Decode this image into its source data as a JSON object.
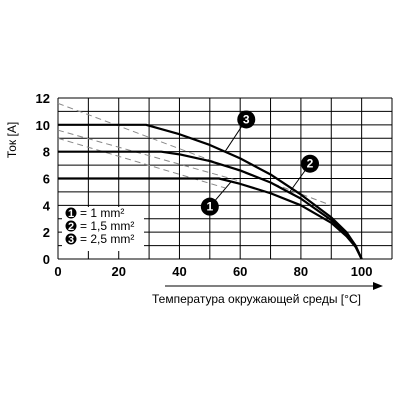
{
  "chart_data": {
    "type": "line",
    "xlabel": "Температура окружающей среды [°C]",
    "ylabel": "Ток [A]",
    "xlim": [
      0,
      110
    ],
    "ylim": [
      0,
      12
    ],
    "x_ticks": [
      0,
      20,
      40,
      60,
      80,
      100
    ],
    "y_ticks": [
      0,
      2,
      4,
      6,
      8,
      10,
      12
    ],
    "grid": true,
    "series": [
      {
        "name": "1",
        "color": "#000000",
        "points": [
          [
            0,
            6
          ],
          [
            20,
            6
          ],
          [
            40,
            6
          ],
          [
            53,
            6
          ],
          [
            60,
            5.6
          ],
          [
            70,
            4.9
          ],
          [
            80,
            4.0
          ],
          [
            90,
            2.7
          ],
          [
            95,
            1.7
          ],
          [
            98,
            0.9
          ],
          [
            100,
            0
          ]
        ]
      },
      {
        "name": "2",
        "color": "#000000",
        "points": [
          [
            0,
            8
          ],
          [
            20,
            8
          ],
          [
            34,
            8
          ],
          [
            40,
            7.8
          ],
          [
            50,
            7.3
          ],
          [
            60,
            6.6
          ],
          [
            70,
            5.7
          ],
          [
            80,
            4.5
          ],
          [
            90,
            2.9
          ],
          [
            95,
            1.9
          ],
          [
            98,
            1.0
          ],
          [
            100,
            0
          ]
        ]
      },
      {
        "name": "3",
        "color": "#000000",
        "points": [
          [
            0,
            10
          ],
          [
            20,
            10
          ],
          [
            29,
            10
          ],
          [
            40,
            9.3
          ],
          [
            50,
            8.5
          ],
          [
            60,
            7.5
          ],
          [
            70,
            6.3
          ],
          [
            80,
            4.8
          ],
          [
            90,
            3.1
          ],
          [
            95,
            2.0
          ],
          [
            98,
            1.0
          ],
          [
            100,
            0
          ]
        ]
      }
    ],
    "dashed_lines": [
      {
        "color": "#888888",
        "points": [
          [
            0,
            11.6
          ],
          [
            90,
            4.0
          ]
        ]
      },
      {
        "color": "#888888",
        "points": [
          [
            0,
            9.6
          ],
          [
            60,
            5.8
          ]
        ]
      },
      {
        "color": "#888888",
        "points": [
          [
            0,
            9.0
          ],
          [
            55,
            5.3
          ]
        ]
      }
    ],
    "legend": [
      {
        "badge": "1",
        "text": "= 1 mm²"
      },
      {
        "badge": "2",
        "text": "= 1,5 mm²"
      },
      {
        "badge": "3",
        "text": "= 2,5 mm²"
      }
    ],
    "callouts": [
      {
        "label": "3",
        "at": [
          62,
          10.4
        ],
        "to": [
          55,
          8.0
        ]
      },
      {
        "label": "2",
        "at": [
          83,
          7.1
        ],
        "to": [
          76,
          4.9
        ]
      },
      {
        "label": "1",
        "at": [
          50,
          3.9
        ],
        "to": [
          57,
          5.75
        ]
      }
    ]
  }
}
